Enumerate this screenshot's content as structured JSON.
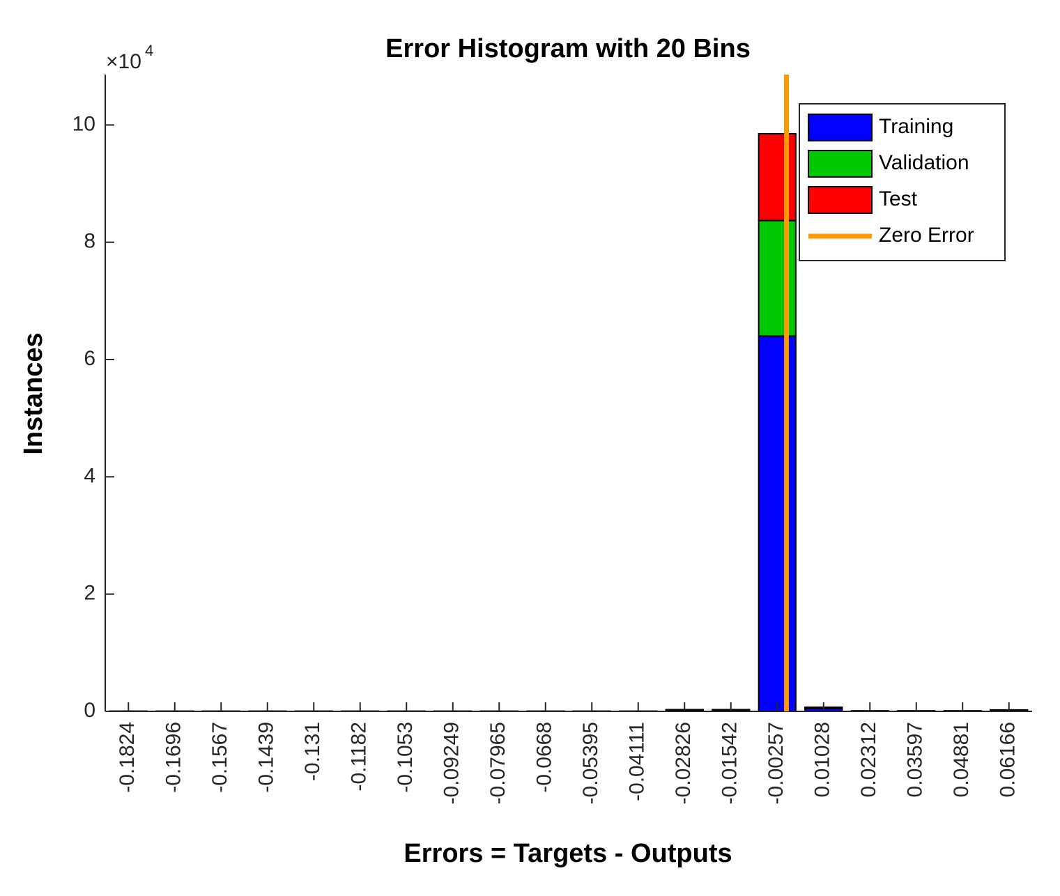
{
  "chart_data": {
    "type": "bar",
    "stacked": true,
    "title": "Error Histogram with 20 Bins",
    "x_label": "Errors = Targets - Outputs",
    "y_label": "Instances",
    "y_exponent_label": {
      "base": "×10",
      "exponent": "4"
    },
    "categories": [
      "-0.1824",
      "-0.1696",
      "-0.1567",
      "-0.1439",
      "-0.131",
      "-0.1182",
      "-0.1053",
      "-0.09249",
      "-0.07965",
      "-0.0668",
      "-0.05395",
      "-0.04111",
      "-0.02826",
      "-0.01542",
      "-0.00257",
      "0.01028",
      "0.02312",
      "0.03597",
      "0.04881",
      "0.06166"
    ],
    "series": [
      {
        "name": "Training",
        "color": "#0000ff",
        "values": [
          0.005,
          0.005,
          0.005,
          0.005,
          0.005,
          0.005,
          0.005,
          0.005,
          0.005,
          0.005,
          0.005,
          0.005,
          0.02,
          0.02,
          6.4,
          0.05,
          0.01,
          0.01,
          0.01,
          0.015
        ]
      },
      {
        "name": "Validation",
        "color": "#00c800",
        "values": [
          0,
          0,
          0,
          0,
          0,
          0,
          0,
          0,
          0,
          0,
          0,
          0,
          0.005,
          0.005,
          1.97,
          0.01,
          0,
          0,
          0,
          0.005
        ]
      },
      {
        "name": "Test",
        "color": "#ff0000",
        "values": [
          0,
          0,
          0,
          0,
          0,
          0,
          0,
          0,
          0,
          0,
          0,
          0,
          0.005,
          0.005,
          1.48,
          0.01,
          0,
          0,
          0,
          0.005
        ]
      }
    ],
    "reference_line": {
      "name": "Zero Error",
      "color": "#ff9900",
      "x": 0
    },
    "ylim": [
      0,
      10.86
    ],
    "yticks": [
      0,
      2,
      4,
      6,
      8,
      10
    ],
    "legend": "top-right",
    "grid": false
  }
}
